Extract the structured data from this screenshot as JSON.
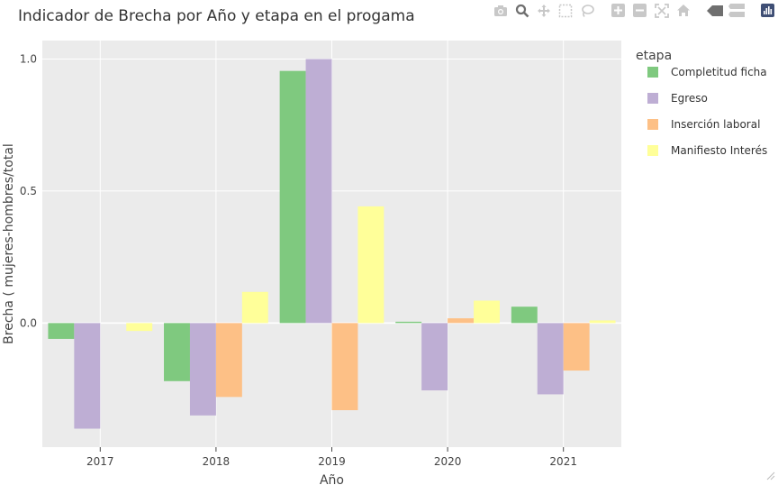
{
  "toolbar": {
    "icons": [
      "camera-icon",
      "zoom-icon",
      "pan-icon",
      "box-select-icon",
      "lasso-icon",
      "zoom-in-icon",
      "zoom-out-icon",
      "autoscale-icon",
      "reset-axes-icon",
      "spike-lines-icon",
      "compare-hover-icon",
      "plotly-logo-icon"
    ]
  },
  "chart_data": {
    "type": "bar",
    "title": "Indicador de Brecha por Año y etapa en el progama",
    "xlabel": "Año",
    "ylabel": "Brecha ( mujeres-hombres/total",
    "categories": [
      "2017",
      "2018",
      "2019",
      "2020",
      "2021"
    ],
    "ylim": [
      -0.47,
      1.07
    ],
    "yticks": [
      0,
      0.5,
      1
    ],
    "ytick_labels": [
      "0.0",
      "0.5",
      "1.0"
    ],
    "grid": true,
    "legend_title": "etapa",
    "legend_position": "right",
    "series": [
      {
        "name": "Completitud ficha",
        "color": "#7fc97f",
        "values": [
          -0.06,
          -0.22,
          0.955,
          0.005,
          0.062
        ]
      },
      {
        "name": "Egreso",
        "color": "#beaed4",
        "values": [
          -0.4,
          -0.35,
          1.0,
          -0.255,
          -0.27
        ]
      },
      {
        "name": "Inserción laboral",
        "color": "#fdc086",
        "values": [
          0,
          -0.28,
          -0.33,
          0.018,
          -0.18
        ]
      },
      {
        "name": "Manifiesto Interés",
        "color": "#ffff99",
        "values": [
          -0.03,
          0.118,
          0.442,
          0.085,
          0.01
        ]
      }
    ],
    "colors": {
      "plot_bg": "#ebebeb",
      "grid": "#ffffff",
      "text": "#444444"
    }
  }
}
